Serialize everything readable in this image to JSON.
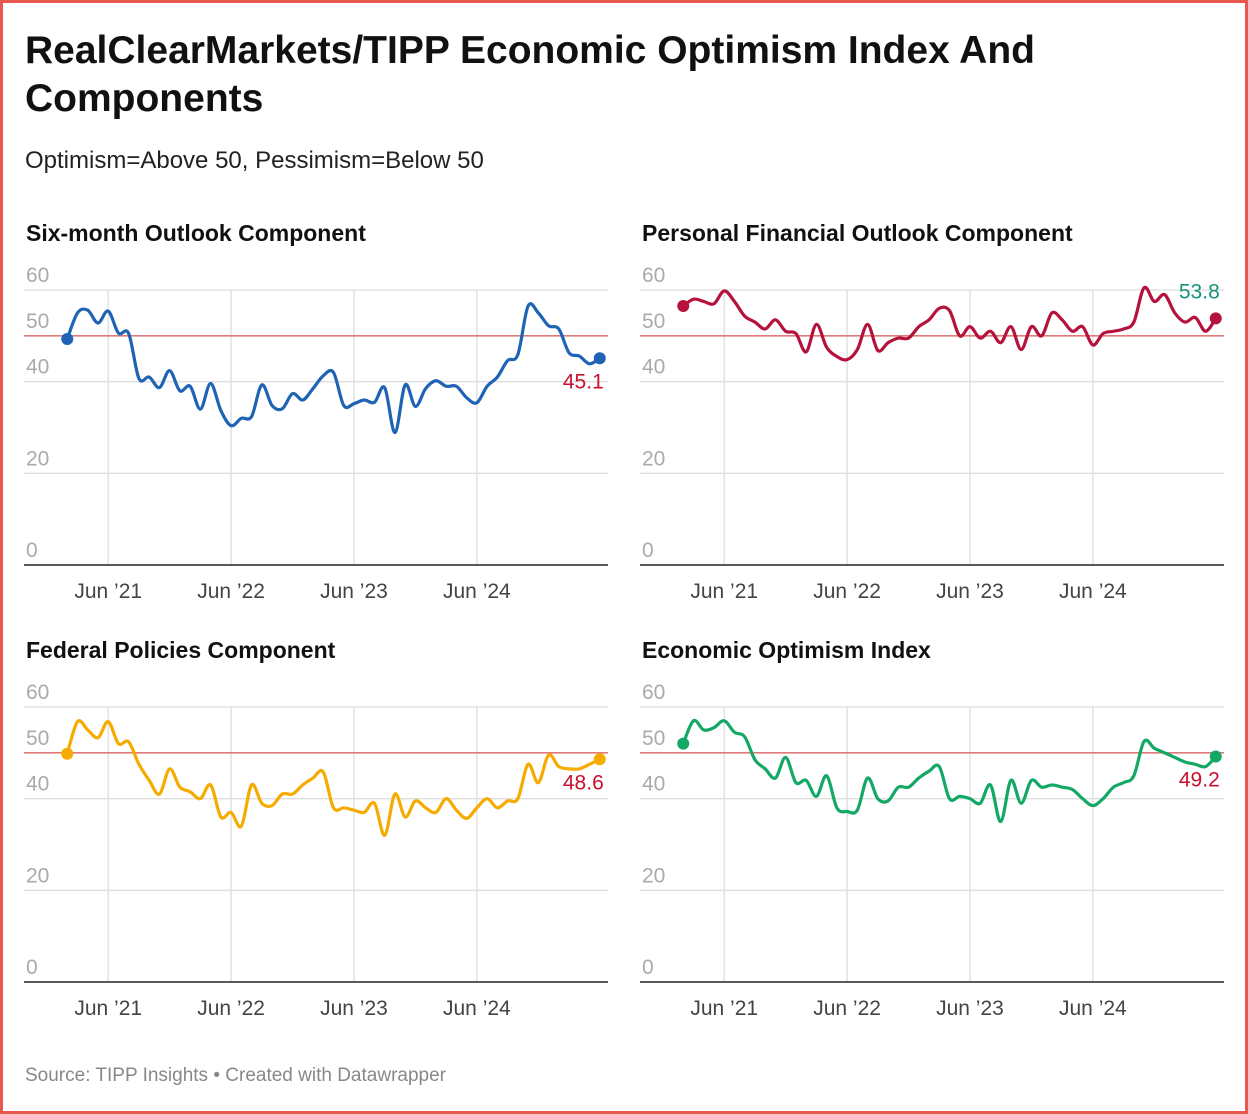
{
  "title": "RealClearMarkets/TIPP Economic Optimism Index And Components",
  "subtitle": "Optimism=Above 50, Pessimism=Below 50",
  "source": "Source: TIPP Insights • Created with Datawrapper",
  "chart_data": [
    {
      "type": "line",
      "title": "Six-month Outlook Component",
      "color": "#1f63b5",
      "above_color": "#14937a",
      "below_color": "#c8102e",
      "reference_line": 50,
      "reference_color": "#e07a7a",
      "x": [
        "2021-02",
        "2021-03",
        "2021-04",
        "2021-05",
        "2021-06",
        "2021-07",
        "2021-08",
        "2021-09",
        "2021-10",
        "2021-11",
        "2021-12",
        "2022-01",
        "2022-02",
        "2022-03",
        "2022-04",
        "2022-05",
        "2022-06",
        "2022-07",
        "2022-08",
        "2022-09",
        "2022-10",
        "2022-11",
        "2022-12",
        "2023-01",
        "2023-02",
        "2023-03",
        "2023-04",
        "2023-05",
        "2023-06",
        "2023-07",
        "2023-08",
        "2023-09",
        "2023-10",
        "2023-11",
        "2023-12",
        "2024-01",
        "2024-02",
        "2024-03",
        "2024-04",
        "2024-05",
        "2024-06",
        "2024-07",
        "2024-08",
        "2024-09",
        "2024-10",
        "2024-11",
        "2024-12",
        "2025-01",
        "2025-02",
        "2025-03",
        "2025-04",
        "2025-05",
        "2025-06"
      ],
      "values": [
        49.3,
        55,
        55.6,
        52.8,
        55.4,
        50.6,
        50.5,
        40.7,
        41,
        38.7,
        42.4,
        38,
        39,
        34,
        39.6,
        33.7,
        30.4,
        32,
        32.4,
        39.3,
        34.8,
        34.1,
        37.4,
        36,
        38.5,
        41.3,
        42,
        34.8,
        35.2,
        36,
        35.5,
        38.7,
        28.9,
        39.3,
        34.6,
        38.5,
        40.2,
        39,
        39,
        36.5,
        35.4,
        39,
        41,
        44.6,
        45.9,
        56.5,
        55,
        52.2,
        51.5,
        46.3,
        45.6,
        43.9,
        45.1
      ],
      "xlim": [
        "2021-01",
        "2025-07"
      ],
      "xticks": [
        {
          "value": "2021-06",
          "label": "Jun ’21"
        },
        {
          "value": "2022-06",
          "label": "Jun ’22"
        },
        {
          "value": "2023-06",
          "label": "Jun ’23"
        },
        {
          "value": "2024-06",
          "label": "Jun ’24"
        }
      ],
      "ylim": [
        0,
        60
      ],
      "yticks": [
        0,
        20,
        40,
        50,
        60
      ],
      "grid": true
    },
    {
      "type": "line",
      "title": "Personal Financial Outlook Component",
      "color": "#b5123c",
      "above_color": "#14937a",
      "below_color": "#c8102e",
      "reference_line": 50,
      "reference_color": "#e07a7a",
      "x": [
        "2021-02",
        "2021-03",
        "2021-04",
        "2021-05",
        "2021-06",
        "2021-07",
        "2021-08",
        "2021-09",
        "2021-10",
        "2021-11",
        "2021-12",
        "2022-01",
        "2022-02",
        "2022-03",
        "2022-04",
        "2022-05",
        "2022-06",
        "2022-07",
        "2022-08",
        "2022-09",
        "2022-10",
        "2022-11",
        "2022-12",
        "2023-01",
        "2023-02",
        "2023-03",
        "2023-04",
        "2023-05",
        "2023-06",
        "2023-07",
        "2023-08",
        "2023-09",
        "2023-10",
        "2023-11",
        "2023-12",
        "2024-01",
        "2024-02",
        "2024-03",
        "2024-04",
        "2024-05",
        "2024-06",
        "2024-07",
        "2024-08",
        "2024-09",
        "2024-10",
        "2024-11",
        "2024-12",
        "2025-01",
        "2025-02",
        "2025-03",
        "2025-04",
        "2025-05",
        "2025-06"
      ],
      "values": [
        56.5,
        58,
        57.5,
        57,
        59.8,
        57.5,
        54.3,
        53,
        51.5,
        53.5,
        51,
        50.5,
        46.5,
        52.5,
        47.5,
        45.5,
        44.8,
        47,
        52.5,
        46.8,
        48.5,
        49.5,
        49.5,
        52,
        53.5,
        56,
        55.5,
        50,
        52,
        49.5,
        51,
        48.5,
        52,
        47,
        52,
        50,
        55,
        53.5,
        51,
        52,
        48,
        50.5,
        51,
        51.5,
        53,
        60.5,
        57.5,
        59,
        55,
        53,
        54,
        51,
        53.8
      ],
      "xlim": [
        "2021-01",
        "2025-07"
      ],
      "xticks": [
        {
          "value": "2021-06",
          "label": "Jun ’21"
        },
        {
          "value": "2022-06",
          "label": "Jun ’22"
        },
        {
          "value": "2023-06",
          "label": "Jun ’23"
        },
        {
          "value": "2024-06",
          "label": "Jun ’24"
        }
      ],
      "ylim": [
        0,
        60
      ],
      "yticks": [
        0,
        20,
        40,
        50,
        60
      ],
      "grid": true
    },
    {
      "type": "line",
      "title": "Federal Policies Component",
      "color": "#f5ab00",
      "above_color": "#14937a",
      "below_color": "#c8102e",
      "reference_line": 50,
      "reference_color": "#e07a7a",
      "x": [
        "2021-02",
        "2021-03",
        "2021-04",
        "2021-05",
        "2021-06",
        "2021-07",
        "2021-08",
        "2021-09",
        "2021-10",
        "2021-11",
        "2021-12",
        "2022-01",
        "2022-02",
        "2022-03",
        "2022-04",
        "2022-05",
        "2022-06",
        "2022-07",
        "2022-08",
        "2022-09",
        "2022-10",
        "2022-11",
        "2022-12",
        "2023-01",
        "2023-02",
        "2023-03",
        "2023-04",
        "2023-05",
        "2023-06",
        "2023-07",
        "2023-08",
        "2023-09",
        "2023-10",
        "2023-11",
        "2023-12",
        "2024-01",
        "2024-02",
        "2024-03",
        "2024-04",
        "2024-05",
        "2024-06",
        "2024-07",
        "2024-08",
        "2024-09",
        "2024-10",
        "2024-11",
        "2024-12",
        "2025-01",
        "2025-02",
        "2025-03",
        "2025-04",
        "2025-05",
        "2025-06"
      ],
      "values": [
        49.8,
        56.8,
        55,
        53.3,
        56.8,
        52,
        52.4,
        47.5,
        44,
        41,
        46.5,
        42.5,
        41.5,
        40,
        43,
        36,
        37,
        34,
        43,
        39,
        38.5,
        41,
        41,
        43,
        44.5,
        45.8,
        38,
        38,
        37.5,
        37,
        39,
        32,
        41,
        36,
        39.5,
        38,
        37,
        40,
        37.5,
        35.7,
        38,
        40,
        38,
        39.5,
        40,
        47.5,
        43.5,
        49.5,
        47,
        46.5,
        46.5,
        47.5,
        48.6
      ],
      "xlim": [
        "2021-01",
        "2025-07"
      ],
      "xticks": [
        {
          "value": "2021-06",
          "label": "Jun ’21"
        },
        {
          "value": "2022-06",
          "label": "Jun ’22"
        },
        {
          "value": "2023-06",
          "label": "Jun ’23"
        },
        {
          "value": "2024-06",
          "label": "Jun ’24"
        }
      ],
      "ylim": [
        0,
        60
      ],
      "yticks": [
        0,
        20,
        40,
        50,
        60
      ],
      "grid": true
    },
    {
      "type": "line",
      "title": "Economic Optimism Index",
      "color": "#13a865",
      "above_color": "#14937a",
      "below_color": "#c8102e",
      "reference_line": 50,
      "reference_color": "#e07a7a",
      "x": [
        "2021-02",
        "2021-03",
        "2021-04",
        "2021-05",
        "2021-06",
        "2021-07",
        "2021-08",
        "2021-09",
        "2021-10",
        "2021-11",
        "2021-12",
        "2022-01",
        "2022-02",
        "2022-03",
        "2022-04",
        "2022-05",
        "2022-06",
        "2022-07",
        "2022-08",
        "2022-09",
        "2022-10",
        "2022-11",
        "2022-12",
        "2023-01",
        "2023-02",
        "2023-03",
        "2023-04",
        "2023-05",
        "2023-06",
        "2023-07",
        "2023-08",
        "2023-09",
        "2023-10",
        "2023-11",
        "2023-12",
        "2024-01",
        "2024-02",
        "2024-03",
        "2024-04",
        "2024-05",
        "2024-06",
        "2024-07",
        "2024-08",
        "2024-09",
        "2024-10",
        "2024-11",
        "2024-12",
        "2025-01",
        "2025-02",
        "2025-03",
        "2025-04",
        "2025-05",
        "2025-06"
      ],
      "values": [
        52,
        57,
        55,
        55.5,
        57,
        54.5,
        53.5,
        48.5,
        46.5,
        44.5,
        49,
        43.5,
        44,
        40.5,
        45,
        38,
        37.2,
        37.5,
        44.5,
        40,
        39.5,
        42.5,
        42.5,
        44.5,
        46,
        47,
        40,
        40.5,
        40,
        39,
        43,
        35,
        44,
        39,
        44,
        42.5,
        43,
        42.5,
        42,
        40,
        38.5,
        40,
        42.5,
        43.5,
        45,
        52.5,
        51,
        50,
        49,
        48,
        47.5,
        47,
        49.2
      ],
      "xlim": [
        "2021-01",
        "2025-07"
      ],
      "xticks": [
        {
          "value": "2021-06",
          "label": "Jun ’21"
        },
        {
          "value": "2022-06",
          "label": "Jun ’22"
        },
        {
          "value": "2023-06",
          "label": "Jun ’23"
        },
        {
          "value": "2024-06",
          "label": "Jun ’24"
        }
      ],
      "ylim": [
        0,
        60
      ],
      "yticks": [
        0,
        20,
        40,
        50,
        60
      ],
      "grid": true
    }
  ]
}
